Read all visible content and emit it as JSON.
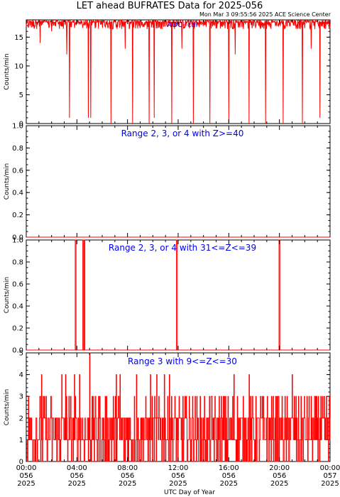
{
  "title": "LET ahead BUFRATES Data for 2025-056",
  "timestamp": "Mon Mar  3 09:55:56 2025 ACE Science Center",
  "xlabel": "UTC Day of Year",
  "colors": {
    "data": "#ff0000",
    "panel_label": "#0000ee",
    "axis": "#000000"
  },
  "x_ticks": [
    {
      "time": "00:00",
      "doy": "056",
      "year": "2025"
    },
    {
      "time": "04:00",
      "doy": "056",
      "year": "2025"
    },
    {
      "time": "08:00",
      "doy": "056",
      "year": "2025"
    },
    {
      "time": "12:00",
      "doy": "056",
      "year": "2025"
    },
    {
      "time": "16:00",
      "doy": "056",
      "year": "2025"
    },
    {
      "time": "20:00",
      "doy": "056",
      "year": "2025"
    },
    {
      "time": "00:00",
      "doy": "057",
      "year": "2025"
    }
  ],
  "chart_data": [
    {
      "type": "line",
      "label": "ADC- cal",
      "ylabel": "Counts/min",
      "xlim_hours": [
        0,
        24
      ],
      "ylim": [
        0,
        18
      ],
      "y_ticks": [
        "0",
        "5",
        "10",
        "15"
      ],
      "baseline": 17.5,
      "noise": "values fluctuate mostly between 16 and 18 counts/min",
      "dips": [
        {
          "hour": 1.1,
          "value": 14
        },
        {
          "hour": 2.0,
          "value": 16
        },
        {
          "hour": 3.2,
          "value": 12
        },
        {
          "hour": 3.4,
          "value": 1
        },
        {
          "hour": 4.9,
          "value": 1
        },
        {
          "hour": 5.1,
          "value": 1
        },
        {
          "hour": 6.7,
          "value": 0
        },
        {
          "hour": 7.8,
          "value": 13
        },
        {
          "hour": 8.4,
          "value": 0
        },
        {
          "hour": 9.7,
          "value": 0
        },
        {
          "hour": 10.1,
          "value": 1
        },
        {
          "hour": 11.5,
          "value": 0
        },
        {
          "hour": 12.3,
          "value": 13
        },
        {
          "hour": 13.2,
          "value": 0
        },
        {
          "hour": 14.5,
          "value": 0
        },
        {
          "hour": 16.0,
          "value": 0
        },
        {
          "hour": 16.5,
          "value": 12
        },
        {
          "hour": 17.6,
          "value": 0
        },
        {
          "hour": 18.9,
          "value": 0
        },
        {
          "hour": 20.3,
          "value": 0
        },
        {
          "hour": 21.8,
          "value": 0
        },
        {
          "hour": 22.5,
          "value": 13
        },
        {
          "hour": 23.2,
          "value": 1
        }
      ]
    },
    {
      "type": "line",
      "label": "Range 2, 3, or 4 with Z>=40",
      "ylabel": "Counts/min",
      "xlim_hours": [
        0,
        24
      ],
      "ylim": [
        0,
        1
      ],
      "y_ticks": [
        "0.0",
        "0.2",
        "0.4",
        "0.6",
        "0.8",
        "1.0"
      ],
      "baseline": 0,
      "spikes": []
    },
    {
      "type": "line",
      "label": "Range 2, 3, or 4 with 31<=Z<=39",
      "ylabel": "Counts/min",
      "xlim_hours": [
        0,
        24
      ],
      "ylim": [
        0,
        1
      ],
      "y_ticks": [
        "0.0",
        "0.2",
        "0.4",
        "0.6",
        "0.8",
        "1.0"
      ],
      "baseline": 0,
      "spikes": [
        {
          "hour": 3.9,
          "value": 1
        },
        {
          "hour": 4.5,
          "value": 1
        },
        {
          "hour": 4.6,
          "value": 1
        },
        {
          "hour": 11.9,
          "value": 1
        },
        {
          "hour": 20.0,
          "value": 1
        }
      ]
    },
    {
      "type": "line",
      "label": "Range 3 with 9<=Z<=30",
      "ylabel": "Counts/min",
      "xlim_hours": [
        0,
        24
      ],
      "ylim": [
        0,
        5
      ],
      "y_ticks": [
        "0",
        "1",
        "2",
        "3",
        "4",
        "5"
      ],
      "noise": "counts fluctuate between 0 and 3 counts/min, occasional peaks of 4, one peak of 5 near 05:00",
      "peaks": [
        {
          "hour": 5.0,
          "value": 5
        },
        {
          "hour": 1.2,
          "value": 4
        },
        {
          "hour": 2.8,
          "value": 4
        },
        {
          "hour": 3.1,
          "value": 4
        },
        {
          "hour": 3.8,
          "value": 4
        },
        {
          "hour": 4.2,
          "value": 4
        },
        {
          "hour": 7.1,
          "value": 4
        },
        {
          "hour": 7.4,
          "value": 4
        },
        {
          "hour": 8.7,
          "value": 4
        },
        {
          "hour": 9.8,
          "value": 4
        },
        {
          "hour": 10.3,
          "value": 4
        },
        {
          "hour": 10.9,
          "value": 4
        },
        {
          "hour": 11.3,
          "value": 4
        },
        {
          "hour": 16.4,
          "value": 4
        },
        {
          "hour": 17.6,
          "value": 4
        },
        {
          "hour": 21.0,
          "value": 4
        }
      ]
    }
  ]
}
